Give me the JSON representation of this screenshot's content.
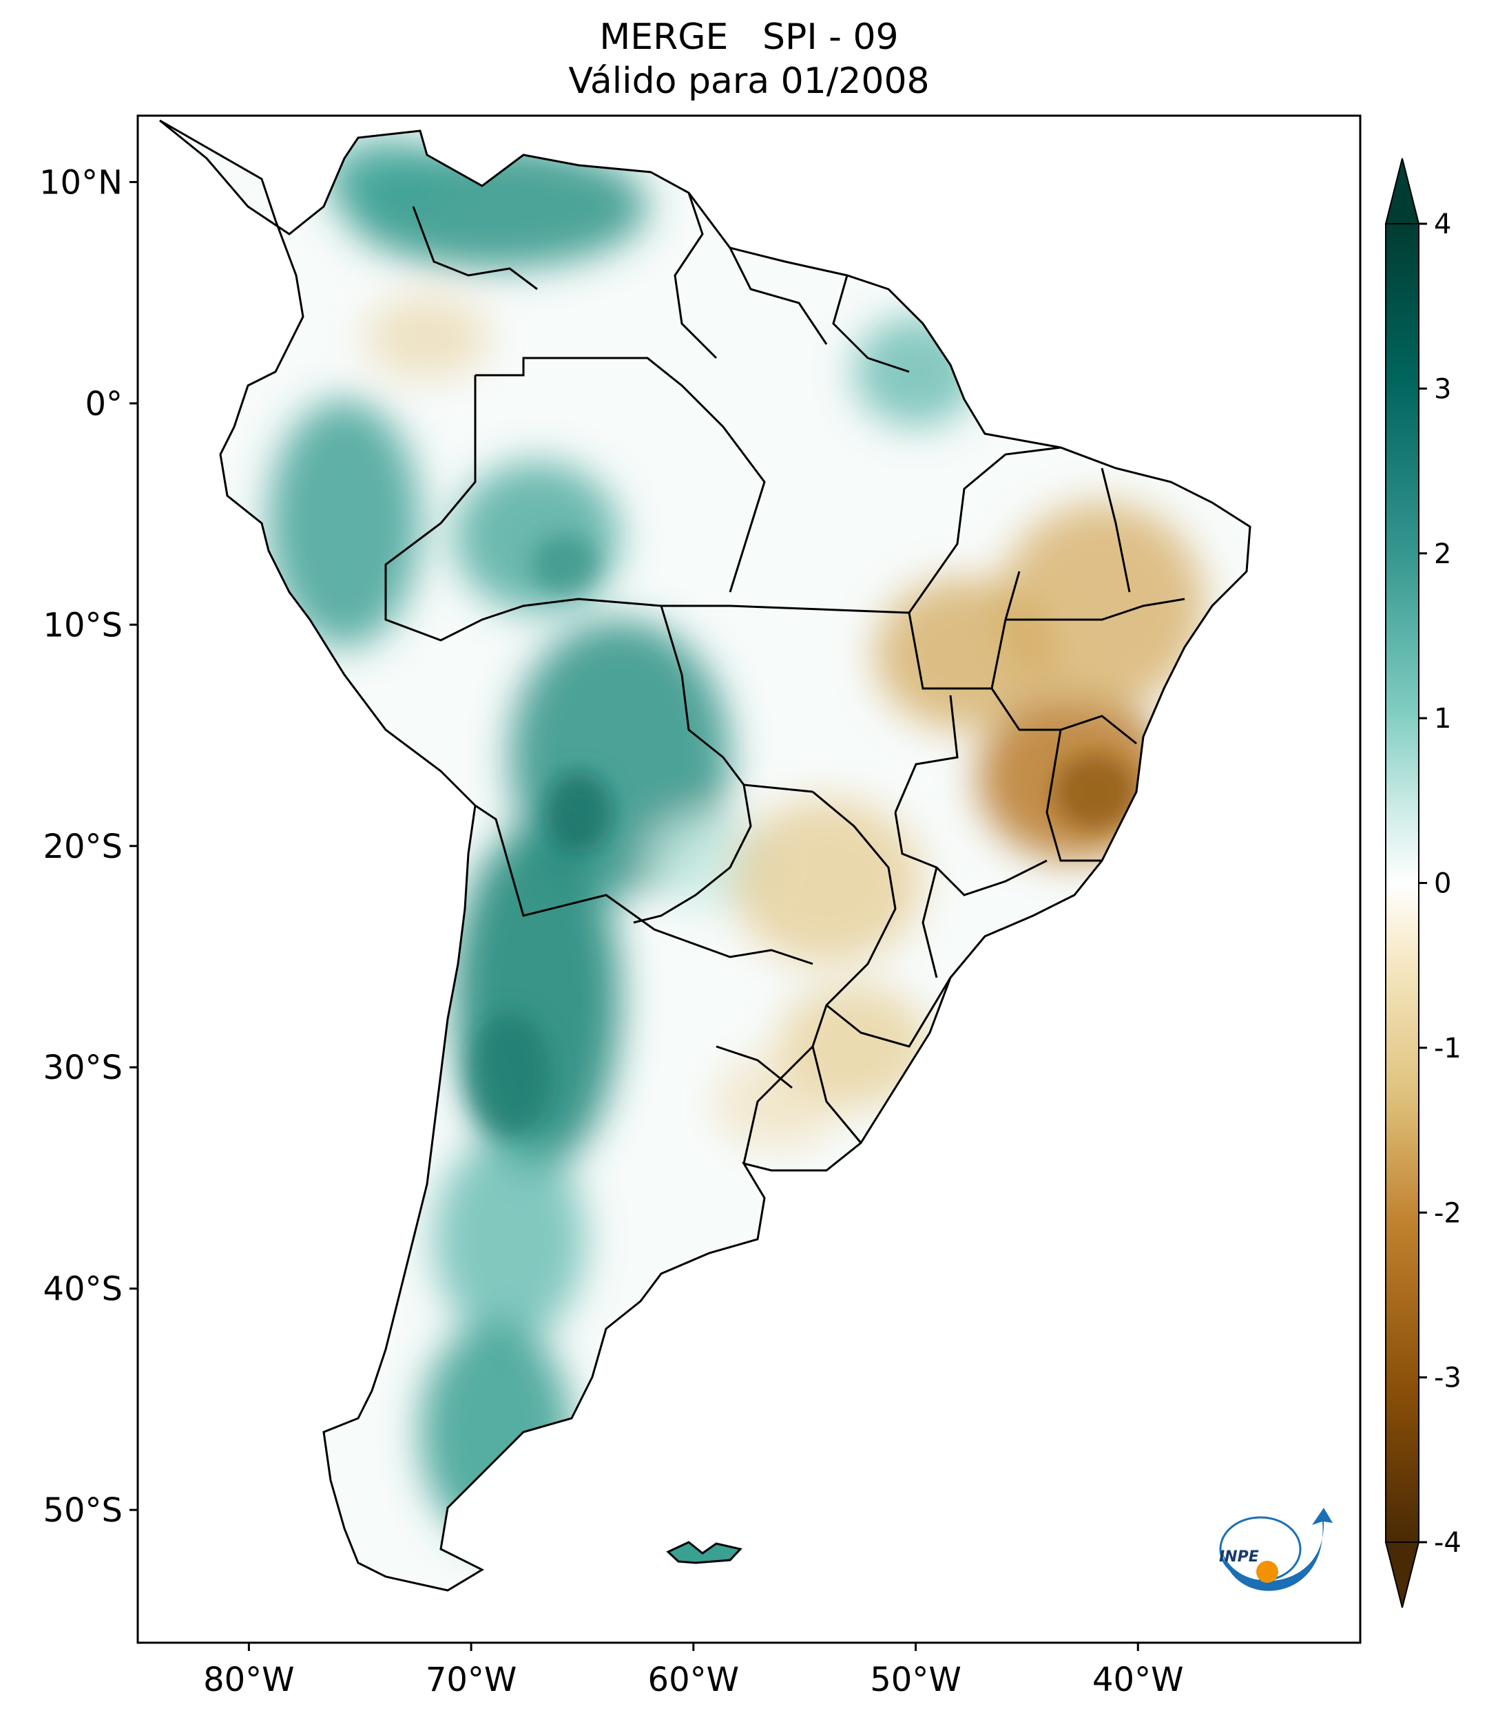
{
  "title": {
    "line1": "MERGE   SPI - 09",
    "line2": "Válido para 01/2008"
  },
  "map": {
    "lon_range": [
      -85,
      -30
    ],
    "lat_range": [
      -56,
      13
    ],
    "lat_ticks": [
      {
        "value": 10,
        "label": "10°N"
      },
      {
        "value": 0,
        "label": "0°"
      },
      {
        "value": -10,
        "label": "10°S"
      },
      {
        "value": -20,
        "label": "20°S"
      },
      {
        "value": -30,
        "label": "30°S"
      },
      {
        "value": -40,
        "label": "40°S"
      },
      {
        "value": -50,
        "label": "50°S"
      }
    ],
    "lon_ticks": [
      {
        "value": -80,
        "label": "80°W"
      },
      {
        "value": -70,
        "label": "70°W"
      },
      {
        "value": -60,
        "label": "60°W"
      },
      {
        "value": -50,
        "label": "50°W"
      },
      {
        "value": -40,
        "label": "40°W"
      }
    ]
  },
  "colorbar": {
    "range": [
      -4,
      4
    ],
    "ticks": [
      {
        "value": 4,
        "label": "4"
      },
      {
        "value": 3,
        "label": "3"
      },
      {
        "value": 2,
        "label": "2"
      },
      {
        "value": 1,
        "label": "1"
      },
      {
        "value": 0,
        "label": "0"
      },
      {
        "value": -1,
        "label": "-1"
      },
      {
        "value": -2,
        "label": "-2"
      },
      {
        "value": -3,
        "label": "-3"
      },
      {
        "value": -4,
        "label": "-4"
      }
    ],
    "colors": {
      "wet_dark": "#013c32",
      "wet_mid": "#2d9a8c",
      "wet_light": "#c7eae5",
      "neutral": "#ffffff",
      "dry_light": "#f6e8c3",
      "dry_mid": "#c6924a",
      "dry_dark": "#543005"
    }
  },
  "logo": {
    "text": "INPE",
    "colors": {
      "blue": "#1a6fb5",
      "orange": "#f39200"
    }
  }
}
